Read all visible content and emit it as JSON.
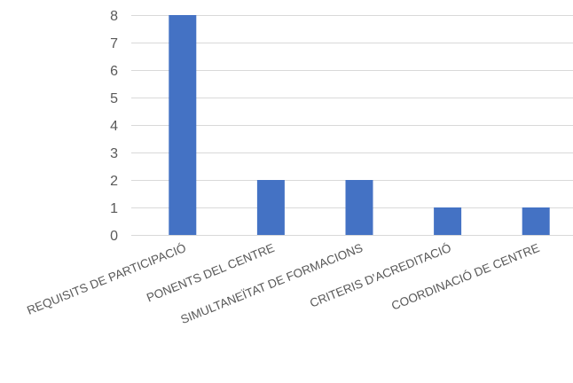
{
  "chart_data": {
    "type": "bar",
    "categories": [
      "REQUISITS DE PARTICIPACIÓ",
      "PONENTS DEL CENTRE",
      "SIMULTANEÏTAT DE FORMACIONS",
      "CRITERIS D'ACREDITACIÓ",
      "COORDINACIÓ DE CENTRE"
    ],
    "values": [
      8,
      2,
      2,
      1,
      1
    ],
    "yticks": [
      "0",
      "1",
      "2",
      "3",
      "4",
      "5",
      "6",
      "7",
      "8"
    ],
    "ylim": [
      0,
      8
    ],
    "grid": true,
    "legend": "none",
    "colors": {
      "bar": "#4472c4",
      "grid": "#d9d9d9",
      "text": "#595959"
    }
  }
}
